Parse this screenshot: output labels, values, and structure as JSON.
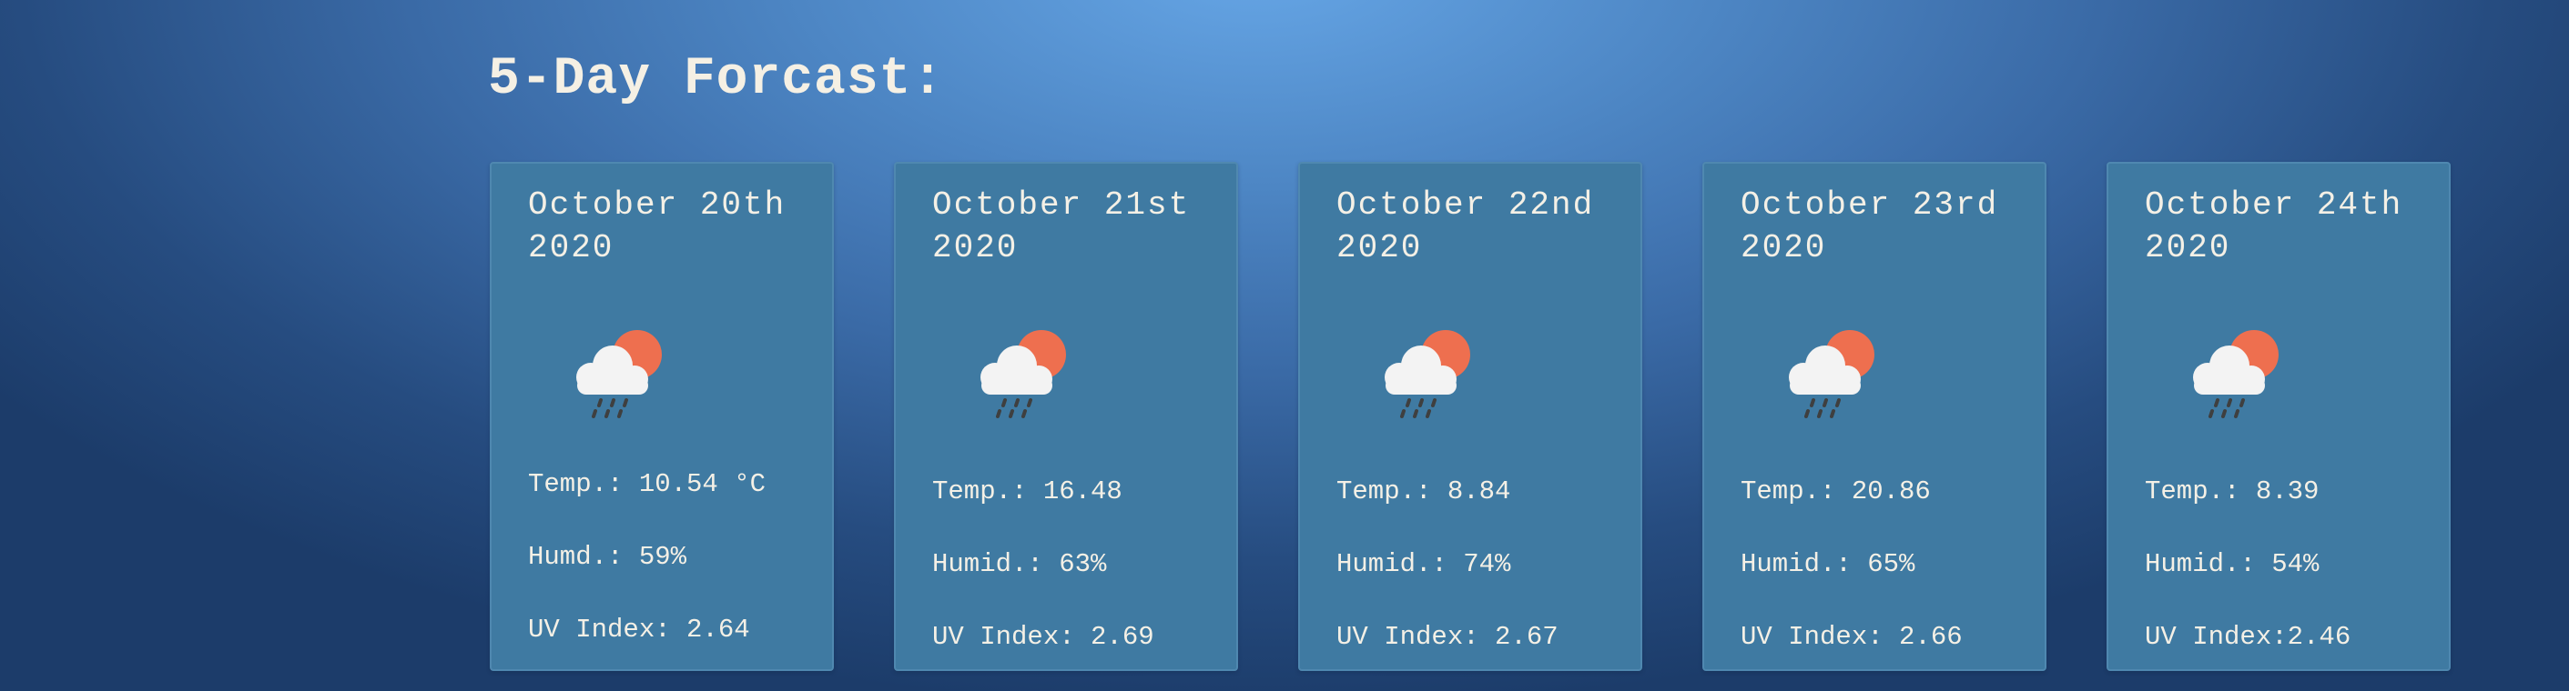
{
  "page": {
    "title": "5-Day Forcast:"
  },
  "icons": {
    "weather": "rain-cloud-sun-icon",
    "cloud_color": "#f3f3f3",
    "sun_color": "#ee6f4f",
    "rain_color": "#3f3f3f"
  },
  "forecast": [
    {
      "date_line1": "October 20th",
      "date_line2": "2020",
      "temp": "Temp.: 10.54 °C",
      "humidity": "Humd.: 59%",
      "uv": "UV Index: 2.64"
    },
    {
      "date_line1": "October 21st",
      "date_line2": "2020",
      "temp": "Temp.: 16.48",
      "humidity": "Humid.: 63%",
      "uv": "UV Index: 2.69"
    },
    {
      "date_line1": "October 22nd",
      "date_line2": "2020",
      "temp": "Temp.: 8.84",
      "humidity": "Humid.: 74%",
      "uv": "UV Index: 2.67"
    },
    {
      "date_line1": "October 23rd",
      "date_line2": "2020",
      "temp": "Temp.: 20.86",
      "humidity": "Humid.: 65%",
      "uv": "UV Index: 2.66"
    },
    {
      "date_line1": "October 24th",
      "date_line2": "2020",
      "temp": "Temp.: 8.39",
      "humidity": "Humid.: 54%",
      "uv": "UV Index:2.46"
    }
  ]
}
